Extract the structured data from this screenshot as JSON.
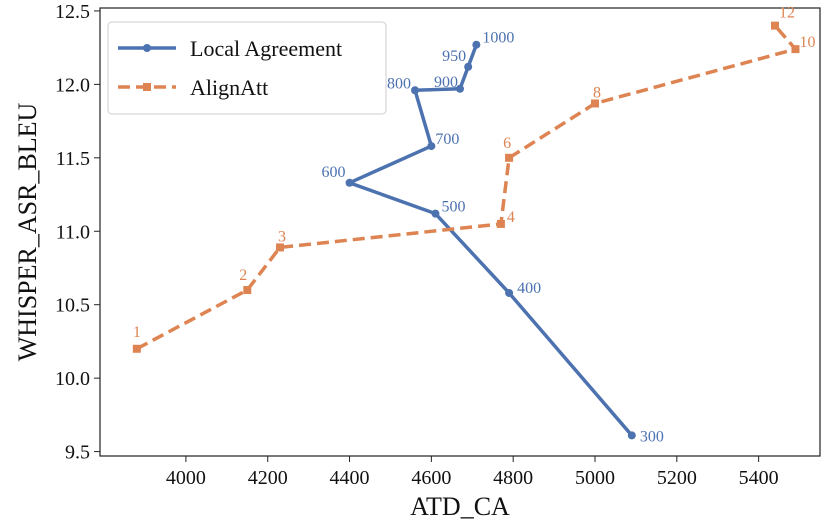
{
  "chart_data": {
    "type": "line",
    "title": "",
    "xlabel": "ATD_CA",
    "ylabel": "WHISPER_ASR_BLEU",
    "xlim": [
      3790,
      5550
    ],
    "ylim": [
      9.47,
      12.52
    ],
    "xticks": [
      "4000",
      "4200",
      "4400",
      "4600",
      "4800",
      "5000",
      "5200",
      "5400"
    ],
    "yticks": [
      "9.5",
      "10.0",
      "10.5",
      "11.0",
      "11.5",
      "12.0",
      "12.5"
    ],
    "grid": false,
    "legend_position": "top-left",
    "series": [
      {
        "name": "Local Agreement",
        "color": "#4c72b0",
        "style": "solid",
        "marker": "circle",
        "x": [
          5090,
          4790,
          4610,
          4400,
          4600,
          4560,
          4670,
          4690,
          4710
        ],
        "y": [
          9.61,
          10.58,
          11.12,
          11.33,
          11.58,
          11.96,
          11.97,
          12.12,
          12.27
        ],
        "labels": [
          "300",
          "400",
          "500",
          "600",
          "700",
          "800",
          "900",
          "950",
          "1000"
        ]
      },
      {
        "name": "AlignAtt",
        "color": "#dd8452",
        "style": "dashed",
        "marker": "square",
        "x": [
          3880,
          4150,
          4230,
          4770,
          4790,
          5000,
          5490,
          5440
        ],
        "y": [
          10.2,
          10.6,
          10.89,
          11.05,
          11.5,
          11.87,
          12.24,
          12.4
        ],
        "labels": [
          "1",
          "2",
          "3",
          "4",
          "6",
          "8",
          "10",
          "12"
        ]
      }
    ]
  }
}
